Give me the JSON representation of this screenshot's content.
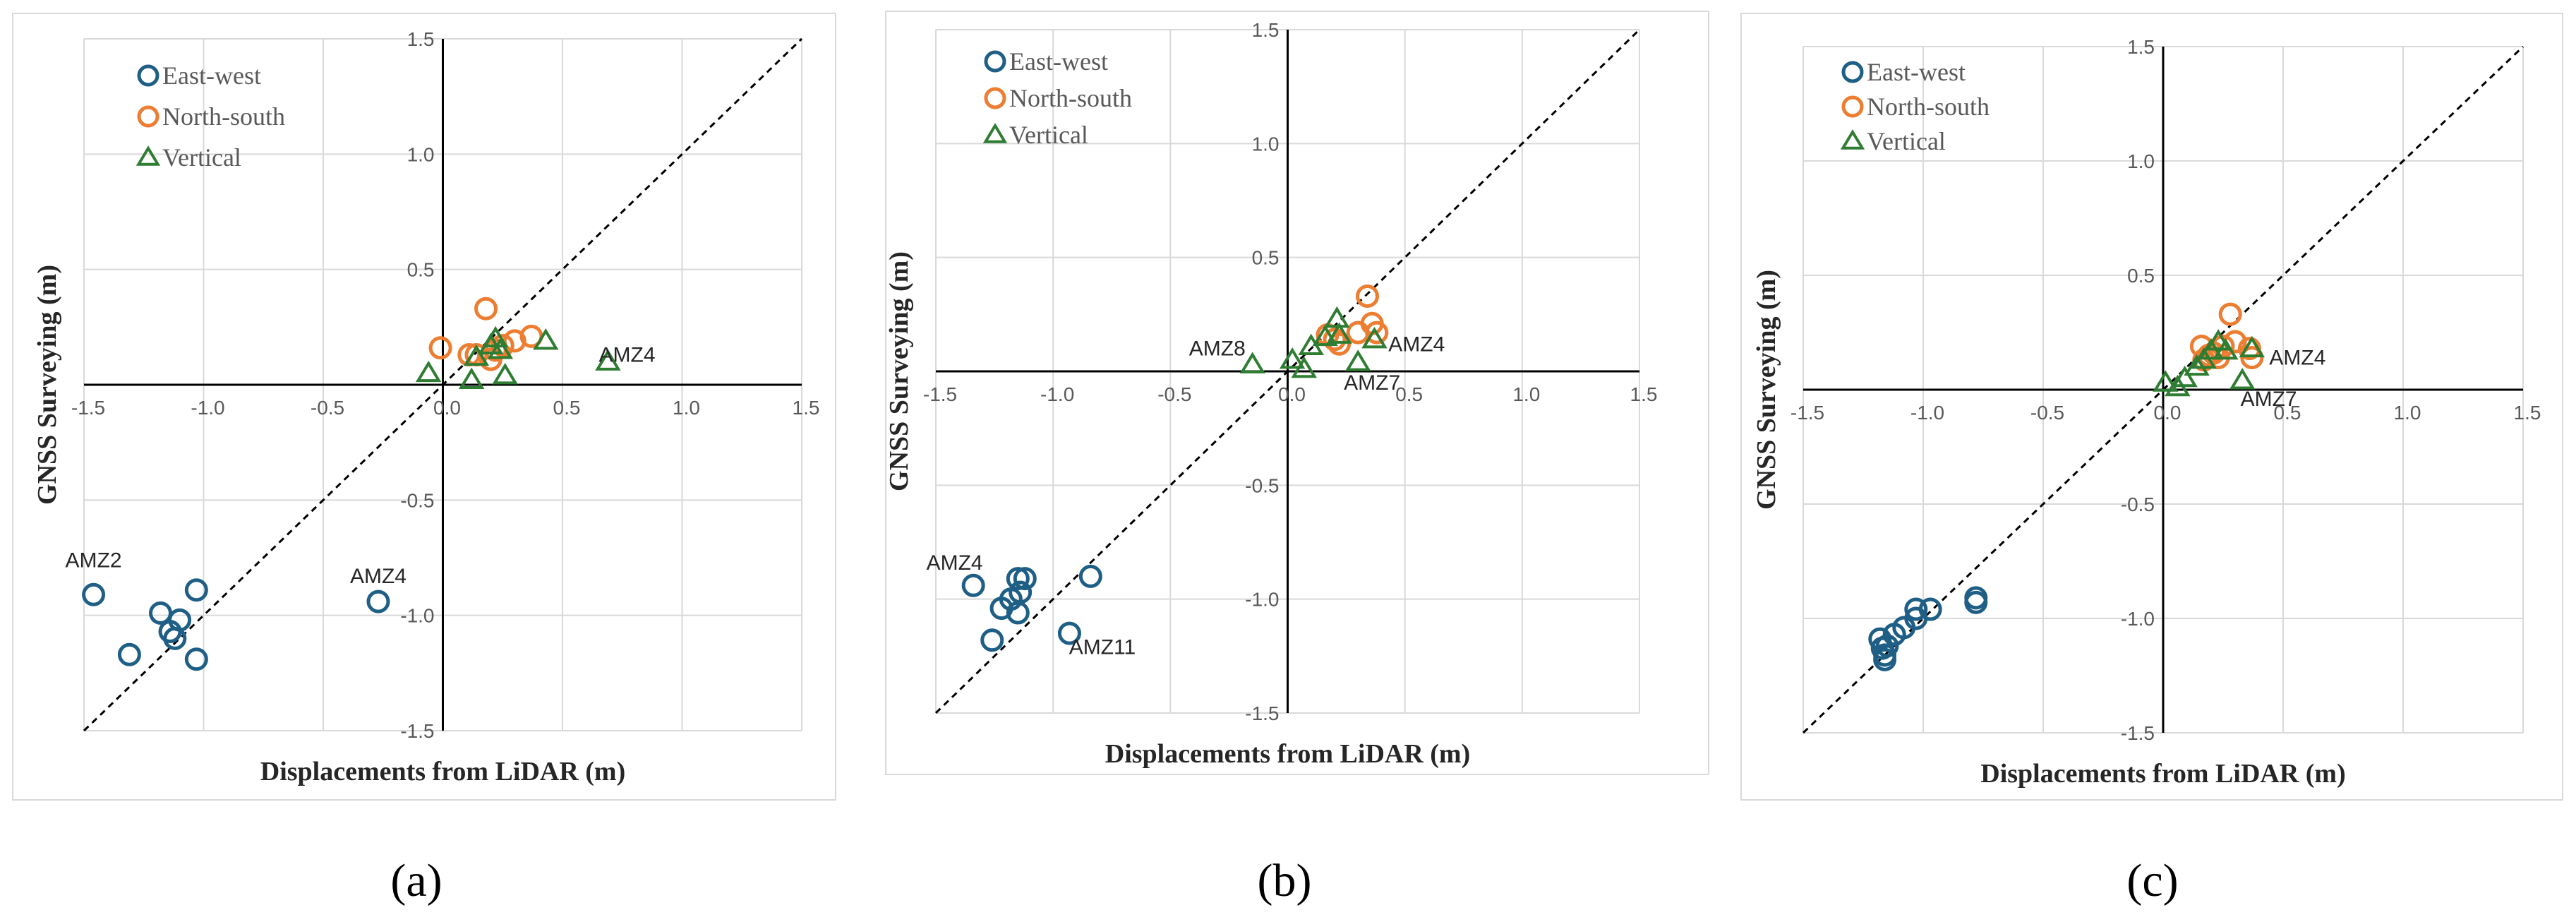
{
  "panel_labels": [
    "(a)",
    "(b)",
    "(c)"
  ],
  "colors": {
    "east_west": "#1f5f86",
    "north_south": "#ed7d31",
    "vertical": "#2e7d32",
    "axis": "#000000",
    "grid": "#d9d9d9",
    "tick": "#595959"
  },
  "chart_data": [
    {
      "type": "scatter",
      "xlabel": "Displacements from LiDAR (m)",
      "ylabel": "GNSS Surveying (m)",
      "xlim": [
        -1.5,
        1.5
      ],
      "ylim": [
        -1.5,
        1.5
      ],
      "xticks": [
        "-1.5",
        "-1.0",
        "-0.5",
        "0.0",
        "0.5",
        "1.0",
        "1.5"
      ],
      "yticks": [
        "-1.5",
        "-1.0",
        "-0.5",
        "0.0",
        "0.5",
        "1.0",
        "1.5"
      ],
      "grid": true,
      "legend_position": "top-left",
      "reference_line": "1:1",
      "series": [
        {
          "name": "East-west",
          "marker": "circle",
          "points": [
            [
              -1.46,
              -0.91
            ],
            [
              -1.31,
              -1.17
            ],
            [
              -1.18,
              -0.99
            ],
            [
              -1.14,
              -1.07
            ],
            [
              -1.12,
              -1.1
            ],
            [
              -1.1,
              -1.02
            ],
            [
              -1.03,
              -0.89
            ],
            [
              -1.03,
              -1.19
            ],
            [
              -0.27,
              -0.94
            ]
          ]
        },
        {
          "name": "North-south",
          "marker": "circle",
          "points": [
            [
              -0.01,
              0.16
            ],
            [
              0.11,
              0.13
            ],
            [
              0.14,
              0.13
            ],
            [
              0.18,
              0.33
            ],
            [
              0.2,
              0.11
            ],
            [
              0.22,
              0.15
            ],
            [
              0.25,
              0.17
            ],
            [
              0.3,
              0.19
            ],
            [
              0.37,
              0.21
            ]
          ]
        },
        {
          "name": "Vertical",
          "marker": "triangle",
          "points": [
            [
              -0.06,
              0.05
            ],
            [
              0.12,
              0.02
            ],
            [
              0.14,
              0.12
            ],
            [
              0.2,
              0.17
            ],
            [
              0.22,
              0.2
            ],
            [
              0.24,
              0.15
            ],
            [
              0.26,
              0.04
            ],
            [
              0.43,
              0.19
            ],
            [
              0.69,
              0.1
            ]
          ]
        }
      ],
      "annotations": [
        {
          "text": "AMZ2",
          "x": -1.46,
          "y": -0.76
        },
        {
          "text": "AMZ4",
          "x": -0.27,
          "y": -0.83
        },
        {
          "text": "AMZ4",
          "x": 0.77,
          "y": 0.13
        }
      ]
    },
    {
      "type": "scatter",
      "xlabel": "Displacements from LiDAR (m)",
      "ylabel": "GNSS Surveying (m)",
      "xlim": [
        -1.5,
        1.5
      ],
      "ylim": [
        -1.5,
        1.5
      ],
      "xticks": [
        "-1.5",
        "-1.0",
        "-0.5",
        "0.0",
        "0.5",
        "1.0",
        "1.5"
      ],
      "yticks": [
        "-1.5",
        "-1.0",
        "-0.5",
        "0.0",
        "0.5",
        "1.0",
        "1.5"
      ],
      "grid": true,
      "legend_position": "top-left",
      "reference_line": "1:1",
      "series": [
        {
          "name": "East-west",
          "marker": "circle",
          "points": [
            [
              -1.34,
              -0.94
            ],
            [
              -1.26,
              -1.18
            ],
            [
              -1.22,
              -1.04
            ],
            [
              -1.18,
              -1.0
            ],
            [
              -1.15,
              -1.06
            ],
            [
              -1.15,
              -0.91
            ],
            [
              -1.14,
              -0.97
            ],
            [
              -1.12,
              -0.91
            ],
            [
              -0.93,
              -1.15
            ],
            [
              -0.84,
              -0.9
            ]
          ]
        },
        {
          "name": "North-south",
          "marker": "circle",
          "points": [
            [
              0.17,
              0.16
            ],
            [
              0.2,
              0.14
            ],
            [
              0.22,
              0.12
            ],
            [
              0.3,
              0.17
            ],
            [
              0.34,
              0.33
            ],
            [
              0.36,
              0.21
            ],
            [
              0.38,
              0.17
            ]
          ]
        },
        {
          "name": "Vertical",
          "marker": "triangle",
          "points": [
            [
              -0.15,
              0.03
            ],
            [
              0.02,
              0.05
            ],
            [
              0.07,
              0.01
            ],
            [
              0.1,
              0.11
            ],
            [
              0.16,
              0.15
            ],
            [
              0.21,
              0.23
            ],
            [
              0.22,
              0.16
            ],
            [
              0.3,
              0.04
            ],
            [
              0.37,
              0.14
            ]
          ]
        }
      ],
      "annotations": [
        {
          "text": "AMZ8",
          "x": -0.3,
          "y": 0.1
        },
        {
          "text": "AMZ4",
          "x": 0.55,
          "y": 0.12
        },
        {
          "text": "AMZ7",
          "x": 0.36,
          "y": -0.05
        },
        {
          "text": "AMZ4",
          "x": -1.42,
          "y": -0.84
        },
        {
          "text": "AMZ11",
          "x": -0.79,
          "y": -1.21
        }
      ]
    },
    {
      "type": "scatter",
      "xlabel": "Displacements from LiDAR (m)",
      "ylabel": "GNSS Surveying (m)",
      "xlim": [
        -1.5,
        1.5
      ],
      "ylim": [
        -1.5,
        1.5
      ],
      "xticks": [
        "-1.5",
        "-1.0",
        "-0.5",
        "0.0",
        "0.5",
        "1.0",
        "1.5"
      ],
      "yticks": [
        "-1.5",
        "-1.0",
        "-0.5",
        "0.0",
        "0.5",
        "1.0",
        "1.5"
      ],
      "grid": true,
      "legend_position": "top-left",
      "reference_line": "1:1",
      "series": [
        {
          "name": "East-west",
          "marker": "circle",
          "points": [
            [
              -1.18,
              -1.09
            ],
            [
              -1.17,
              -1.13
            ],
            [
              -1.16,
              -1.18
            ],
            [
              -1.16,
              -1.16
            ],
            [
              -1.15,
              -1.12
            ],
            [
              -1.12,
              -1.07
            ],
            [
              -1.08,
              -1.04
            ],
            [
              -1.03,
              -0.96
            ],
            [
              -1.03,
              -1.0
            ],
            [
              -0.97,
              -0.96
            ],
            [
              -0.78,
              -0.91
            ],
            [
              -0.78,
              -0.93
            ]
          ]
        },
        {
          "name": "North-south",
          "marker": "circle",
          "points": [
            [
              0.17,
              0.13
            ],
            [
              0.19,
              0.15
            ],
            [
              0.21,
              0.16
            ],
            [
              0.23,
              0.14
            ],
            [
              0.25,
              0.19
            ],
            [
              0.28,
              0.33
            ],
            [
              0.3,
              0.21
            ],
            [
              0.36,
              0.18
            ],
            [
              0.37,
              0.14
            ],
            [
              0.16,
              0.19
            ]
          ]
        },
        {
          "name": "Vertical",
          "marker": "triangle",
          "points": [
            [
              0.01,
              0.03
            ],
            [
              0.06,
              0.01
            ],
            [
              0.09,
              0.05
            ],
            [
              0.14,
              0.1
            ],
            [
              0.17,
              0.13
            ],
            [
              0.2,
              0.17
            ],
            [
              0.23,
              0.21
            ],
            [
              0.26,
              0.17
            ],
            [
              0.33,
              0.04
            ],
            [
              0.37,
              0.18
            ]
          ]
        }
      ],
      "annotations": [
        {
          "text": "AMZ4",
          "x": 0.56,
          "y": 0.14
        },
        {
          "text": "AMZ7",
          "x": 0.44,
          "y": -0.04
        }
      ]
    }
  ]
}
